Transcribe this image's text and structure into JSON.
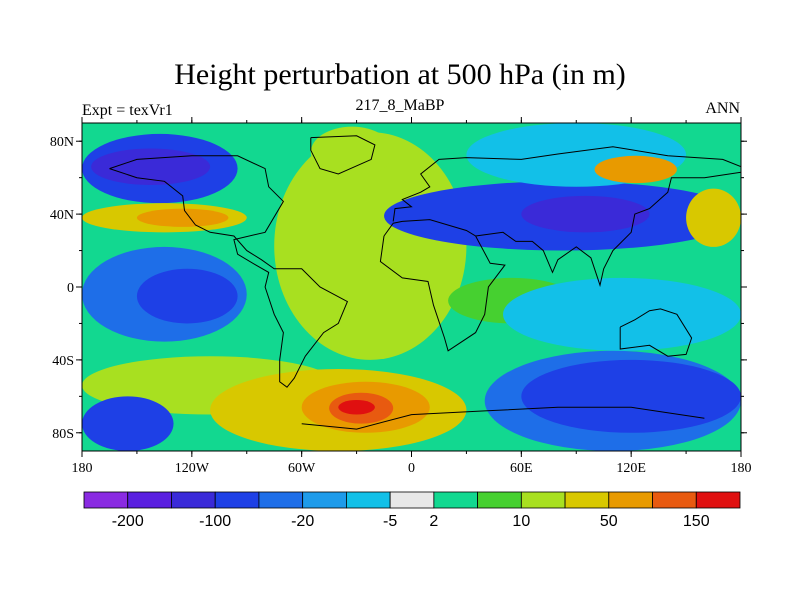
{
  "chart_data": {
    "type": "heatmap",
    "title": "Height perturbation at 500 hPa (in m)",
    "left_label": "Expt = texVr1",
    "center_label": "217_8_MaBP",
    "right_label": "ANN",
    "xlim": [
      -180,
      180
    ],
    "ylim": [
      -90,
      90
    ],
    "x_ticks": [
      {
        "value": -180,
        "label": "180"
      },
      {
        "value": -120,
        "label": "120W"
      },
      {
        "value": -60,
        "label": "60W"
      },
      {
        "value": 0,
        "label": "0"
      },
      {
        "value": 60,
        "label": "60E"
      },
      {
        "value": 120,
        "label": "120E"
      },
      {
        "value": 180,
        "label": "180"
      }
    ],
    "y_ticks": [
      {
        "value": 80,
        "label": "80N"
      },
      {
        "value": 40,
        "label": "40N"
      },
      {
        "value": 0,
        "label": "0"
      },
      {
        "value": -40,
        "label": "40S"
      },
      {
        "value": -80,
        "label": "80S"
      }
    ],
    "colorbar": {
      "colors": [
        "#8a2be2",
        "#5a1fe0",
        "#3a2ad8",
        "#1e40e6",
        "#1e6ee8",
        "#1e9bea",
        "#12c0e8",
        "#e8e8e8",
        "#12d890",
        "#46d030",
        "#a8e020",
        "#d8c800",
        "#e89a00",
        "#e85a10",
        "#e01010"
      ],
      "labels": [
        {
          "boundary": 1,
          "text": "-200"
        },
        {
          "boundary": 3,
          "text": "-100"
        },
        {
          "boundary": 5,
          "text": "-20"
        },
        {
          "boundary": 7,
          "text": "-5"
        },
        {
          "boundary": 8,
          "text": "2"
        },
        {
          "boundary": 10,
          "text": "10"
        },
        {
          "boundary": 12,
          "text": "50"
        },
        {
          "boundary": 14,
          "text": "150"
        }
      ]
    },
    "field_regions": [
      {
        "label": "background",
        "lon": [
          -180,
          180
        ],
        "lat": [
          -90,
          90
        ],
        "color_index": 8
      },
      {
        "label": "north-pacific-low",
        "lon": [
          -180,
          -95
        ],
        "lat": [
          46,
          84
        ],
        "color_index": 3
      },
      {
        "label": "north-pacific-low-core",
        "lon": [
          -175,
          -110
        ],
        "lat": [
          56,
          76
        ],
        "color_index": 2
      },
      {
        "label": "north-pacific-high",
        "lon": [
          -180,
          -90
        ],
        "lat": [
          30,
          46
        ],
        "color_index": 11
      },
      {
        "label": "north-pacific-high-core",
        "lon": [
          -150,
          -100
        ],
        "lat": [
          33,
          43
        ],
        "color_index": 12
      },
      {
        "label": "north-pacific-low-2",
        "lon": [
          -180,
          -90
        ],
        "lat": [
          -30,
          22
        ],
        "color_index": 4
      },
      {
        "label": "equatorial-pacific-low-core",
        "lon": [
          -150,
          -95
        ],
        "lat": [
          -20,
          10
        ],
        "color_index": 3
      },
      {
        "label": "south-pacific-high",
        "lon": [
          -180,
          -40
        ],
        "lat": [
          -70,
          -38
        ],
        "color_index": 10
      },
      {
        "label": "south-pacific-high-2",
        "lon": [
          -110,
          30
        ],
        "lat": [
          -90,
          -45
        ],
        "color_index": 11
      },
      {
        "label": "south-atlantic-high-core",
        "lon": [
          -60,
          10
        ],
        "lat": [
          -80,
          -52
        ],
        "color_index": 12
      },
      {
        "label": "south-atlantic-high-center",
        "lon": [
          -45,
          -10
        ],
        "lat": [
          -75,
          -58
        ],
        "color_index": 13
      },
      {
        "label": "south-atlantic-high-peak",
        "lon": [
          -40,
          -20
        ],
        "lat": [
          -70,
          -62
        ],
        "color_index": 14
      },
      {
        "label": "south-polar-low",
        "lon": [
          -180,
          -130
        ],
        "lat": [
          -90,
          -60
        ],
        "color_index": 3
      },
      {
        "label": "atlantic-green",
        "lon": [
          -75,
          30
        ],
        "lat": [
          -40,
          85
        ],
        "color_index": 10
      },
      {
        "label": "north-atlantic-yellow",
        "lon": [
          -55,
          -10
        ],
        "lat": [
          60,
          88
        ],
        "color_index": 10
      },
      {
        "label": "eurasia-low",
        "lon": [
          -15,
          180
        ],
        "lat": [
          20,
          58
        ],
        "color_index": 3
      },
      {
        "label": "eurasia-low-core",
        "lon": [
          60,
          130
        ],
        "lat": [
          30,
          50
        ],
        "color_index": 2
      },
      {
        "label": "north-high",
        "lon": [
          30,
          150
        ],
        "lat": [
          55,
          90
        ],
        "color_index": 6
      },
      {
        "label": "north-high-orange",
        "lon": [
          100,
          145
        ],
        "lat": [
          57,
          72
        ],
        "color_index": 12
      },
      {
        "label": "southern-ocean-low",
        "lon": [
          40,
          180
        ],
        "lat": [
          -90,
          -35
        ],
        "color_index": 4
      },
      {
        "label": "southern-ocean-low-core",
        "lon": [
          60,
          180
        ],
        "lat": [
          -80,
          -40
        ],
        "color_index": 3
      },
      {
        "label": "indian-ocean-green",
        "lon": [
          20,
          90
        ],
        "lat": [
          -20,
          5
        ],
        "color_index": 9
      },
      {
        "label": "west-pacific-cyan",
        "lon": [
          50,
          180
        ],
        "lat": [
          -35,
          5
        ],
        "color_index": 6
      },
      {
        "label": "east-pacific-high",
        "lon": [
          150,
          180
        ],
        "lat": [
          22,
          54
        ],
        "color_index": 11
      }
    ]
  }
}
